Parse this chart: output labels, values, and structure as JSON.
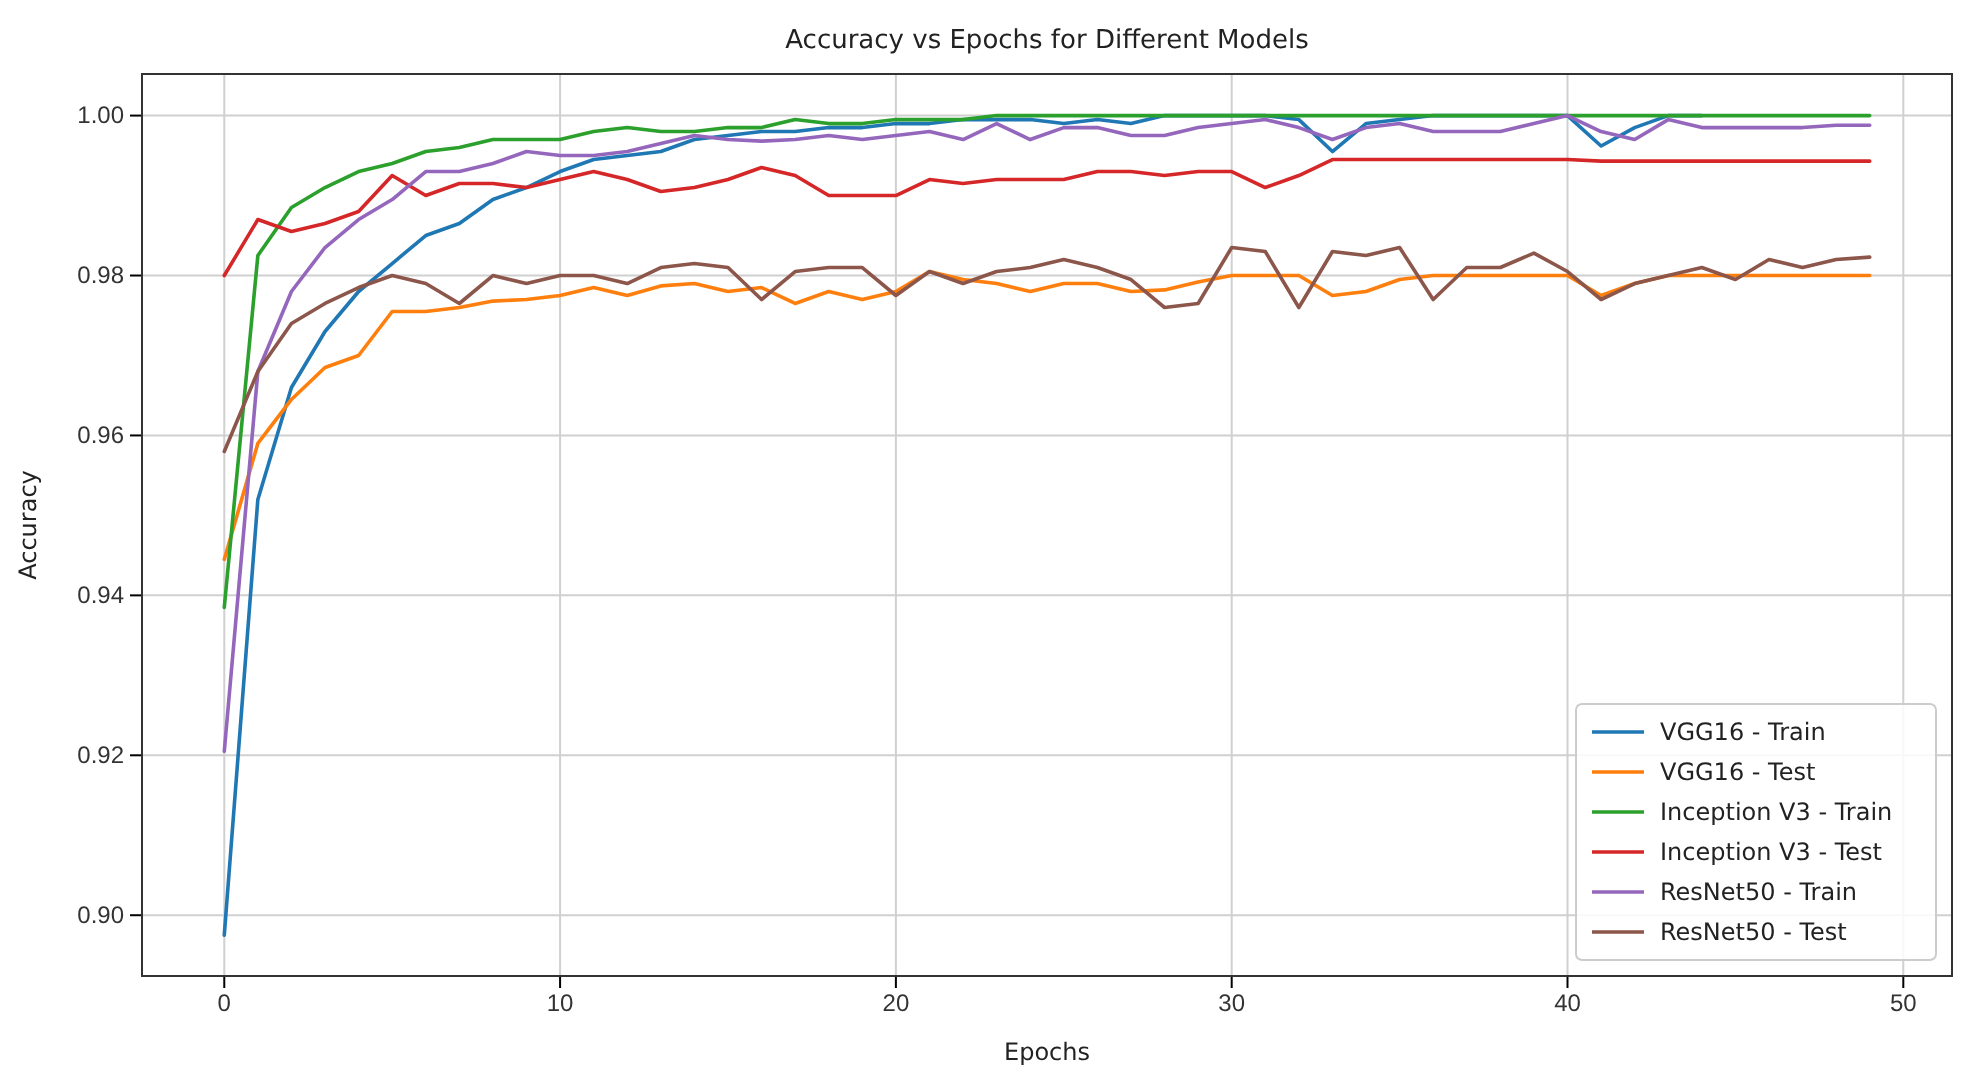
{
  "chart_data": {
    "type": "line",
    "title": "Accuracy vs Epochs for Different Models",
    "xlabel": "Epochs",
    "ylabel": "Accuracy",
    "x": [
      0,
      1,
      2,
      3,
      4,
      5,
      6,
      7,
      8,
      9,
      10,
      11,
      12,
      13,
      14,
      15,
      16,
      17,
      18,
      19,
      20,
      21,
      22,
      23,
      24,
      25,
      26,
      27,
      28,
      29,
      30,
      31,
      32,
      33,
      34,
      35,
      36,
      37,
      38,
      39,
      40,
      41,
      42,
      43,
      44,
      45,
      46,
      47,
      48,
      49
    ],
    "xlim": [
      -2.45,
      51.45
    ],
    "xticks": [
      0,
      10,
      20,
      30,
      40,
      50
    ],
    "ylim": [
      0.8924,
      1.0052
    ],
    "yticks": [
      {
        "value": 0.9,
        "label": "0.90"
      },
      {
        "value": 0.92,
        "label": "0.92"
      },
      {
        "value": 0.94,
        "label": "0.94"
      },
      {
        "value": 0.96,
        "label": "0.96"
      },
      {
        "value": 0.98,
        "label": "0.98"
      },
      {
        "value": 1.0,
        "label": "1.00"
      }
    ],
    "grid": true,
    "legend": "bottom right",
    "line_style": "solid",
    "marker": "none",
    "series": [
      {
        "name": "VGG16 - Train",
        "color": "#1f77b4",
        "values": [
          0.8975,
          0.952,
          0.966,
          0.973,
          0.978,
          0.9815,
          0.985,
          0.9865,
          0.9895,
          0.991,
          0.993,
          0.9945,
          0.995,
          0.9955,
          0.997,
          0.9975,
          0.998,
          0.998,
          0.9985,
          0.9985,
          0.999,
          0.999,
          0.9995,
          0.9995,
          0.9995,
          0.999,
          0.9995,
          0.999,
          1.0,
          1.0,
          1.0,
          1.0,
          0.9995,
          0.9955,
          0.999,
          0.9995,
          1.0,
          1.0,
          1.0,
          1.0,
          1.0,
          0.9962,
          0.9985,
          1.0,
          1.0,
          null,
          null,
          null,
          null,
          null
        ]
      },
      {
        "name": "VGG16 - Test",
        "color": "#ff7f0e",
        "values": [
          0.9445,
          0.959,
          0.9645,
          0.9685,
          0.97,
          0.9755,
          0.9755,
          0.976,
          0.9768,
          0.977,
          0.9775,
          0.9785,
          0.9775,
          0.9787,
          0.979,
          0.978,
          0.9785,
          0.9765,
          0.978,
          0.977,
          0.978,
          0.9805,
          0.9795,
          0.979,
          0.978,
          0.979,
          0.979,
          0.978,
          0.9782,
          0.9792,
          0.98,
          0.98,
          0.98,
          0.9775,
          0.978,
          0.9795,
          0.98,
          0.98,
          0.98,
          0.98,
          0.98,
          0.9775,
          0.979,
          0.98,
          0.98,
          0.98,
          0.98,
          0.98,
          0.98,
          0.98
        ]
      },
      {
        "name": "Inception V3 - Train",
        "color": "#2ca02c",
        "values": [
          0.9385,
          0.9825,
          0.9885,
          0.991,
          0.993,
          0.994,
          0.9955,
          0.996,
          0.997,
          0.997,
          0.997,
          0.998,
          0.9985,
          0.998,
          0.998,
          0.9985,
          0.9985,
          0.9995,
          0.999,
          0.999,
          0.9995,
          0.9995,
          0.9995,
          1.0,
          1.0,
          1.0,
          1.0,
          1.0,
          1.0,
          1.0,
          1.0,
          1.0,
          1.0,
          1.0,
          1.0,
          1.0,
          1.0,
          1.0,
          1.0,
          1.0,
          1.0,
          1.0,
          1.0,
          1.0,
          1.0,
          1.0,
          1.0,
          1.0,
          1.0,
          1.0
        ]
      },
      {
        "name": "Inception V3 - Test",
        "color": "#d62728",
        "values": [
          0.98,
          0.987,
          0.9855,
          0.9865,
          0.988,
          0.9925,
          0.99,
          0.9915,
          0.9915,
          0.991,
          0.992,
          0.993,
          0.992,
          0.9905,
          0.991,
          0.992,
          0.9935,
          0.9925,
          0.99,
          0.99,
          0.99,
          0.992,
          0.9915,
          0.992,
          0.992,
          0.992,
          0.993,
          0.993,
          0.9925,
          0.993,
          0.993,
          0.991,
          0.9925,
          0.9945,
          0.9945,
          0.9945,
          0.9945,
          0.9945,
          0.9945,
          0.9945,
          0.9945,
          0.9943,
          0.9943,
          0.9943,
          0.9943,
          0.9943,
          0.9943,
          0.9943,
          0.9943,
          0.9943
        ]
      },
      {
        "name": "ResNet50 - Train",
        "color": "#9467bd",
        "values": [
          0.9205,
          0.968,
          0.978,
          0.9835,
          0.987,
          0.9895,
          0.993,
          0.993,
          0.994,
          0.9955,
          0.995,
          0.995,
          0.9955,
          0.9965,
          0.9975,
          0.997,
          0.9968,
          0.997,
          0.9975,
          0.997,
          0.9975,
          0.998,
          0.997,
          0.999,
          0.997,
          0.9985,
          0.9985,
          0.9975,
          0.9975,
          0.9985,
          0.999,
          0.9995,
          0.9985,
          0.997,
          0.9985,
          0.999,
          0.998,
          0.998,
          0.998,
          0.999,
          1.0,
          0.998,
          0.997,
          0.9995,
          0.9985,
          0.9985,
          0.9985,
          0.9985,
          0.9988,
          0.9988
        ]
      },
      {
        "name": "ResNet50 - Test",
        "color": "#8c564b",
        "values": [
          0.958,
          0.968,
          0.974,
          0.9765,
          0.9785,
          0.98,
          0.979,
          0.9765,
          0.98,
          0.979,
          0.98,
          0.98,
          0.979,
          0.981,
          0.9815,
          0.981,
          0.977,
          0.9805,
          0.981,
          0.981,
          0.9775,
          0.9805,
          0.979,
          0.9805,
          0.981,
          0.982,
          0.981,
          0.9795,
          0.976,
          0.9765,
          0.9835,
          0.983,
          0.976,
          0.983,
          0.9825,
          0.9835,
          0.977,
          0.981,
          0.981,
          0.9828,
          0.9805,
          0.977,
          0.979,
          0.98,
          0.981,
          0.9795,
          0.982,
          0.981,
          0.982,
          0.9823
        ]
      }
    ]
  }
}
